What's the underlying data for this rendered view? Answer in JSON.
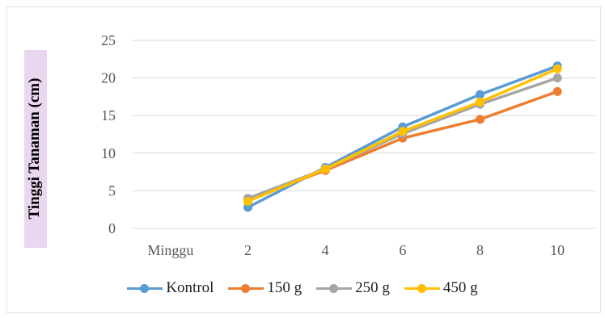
{
  "chart_data": {
    "type": "line",
    "ylabel": "Tinggi Tanaman (cm)",
    "xlabel": "",
    "categories": [
      "Minggu",
      "2",
      "4",
      "6",
      "8",
      "10"
    ],
    "ylim": [
      0,
      25
    ],
    "yticks": [
      0,
      5,
      10,
      15,
      20,
      25
    ],
    "grid": "horizontal",
    "legend_position": "bottom",
    "series": [
      {
        "name": "Kontrol",
        "color": "#5b9bd5",
        "values": [
          null,
          2.8,
          8.1,
          13.5,
          17.8,
          21.6
        ]
      },
      {
        "name": "150 g",
        "color": "#ed7d31",
        "values": [
          null,
          3.9,
          7.7,
          12.0,
          14.5,
          18.2
        ]
      },
      {
        "name": "250 g",
        "color": "#a5a5a5",
        "values": [
          null,
          4.0,
          7.9,
          12.6,
          16.5,
          20.0
        ]
      },
      {
        "name": "450 g",
        "color": "#ffc000",
        "values": [
          null,
          3.6,
          7.9,
          12.9,
          16.8,
          21.2
        ]
      }
    ]
  }
}
